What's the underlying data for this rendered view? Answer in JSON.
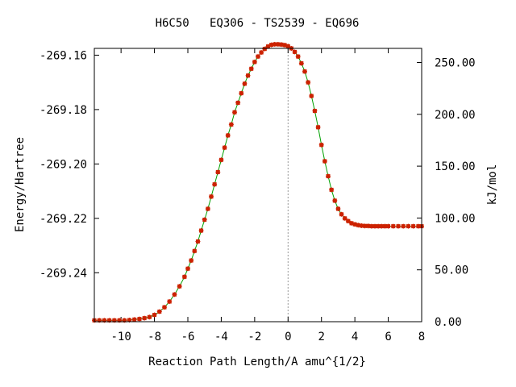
{
  "chart_data": {
    "type": "line",
    "title": "H6C50   EQ306 - TS2539 - EQ696",
    "xlabel": "Reaction Path Length/A amu^{1/2}",
    "ylabel": "Energy/Hartree",
    "y2label": "kJ/mol",
    "xlim": [
      -11.6,
      8
    ],
    "ylim": [
      -269.258,
      -269.1575
    ],
    "y2lim": [
      0,
      263.6
    ],
    "xticks": [
      "-10",
      "-8",
      "-6",
      "-4",
      "-2",
      "0",
      "2",
      "4",
      "6",
      "8"
    ],
    "yticks": [
      "-269.16",
      "-269.18",
      "-269.20",
      "-269.22",
      "-269.24"
    ],
    "y2ticks": [
      "0.00",
      "50.00",
      "100.00",
      "150.00",
      "200.00",
      "250.00"
    ],
    "ts_marker_x": 0,
    "line_color": "#00a000",
    "point_color": "#cc2200",
    "series": [
      {
        "x": [
          -11.6,
          -11.3,
          -11.0,
          -10.7,
          -10.4,
          -10.1,
          -9.8,
          -9.5,
          -9.2,
          -8.9,
          -8.6,
          -8.3,
          -8.0,
          -7.7,
          -7.4,
          -7.1,
          -6.8,
          -6.5,
          -6.2,
          -6.0,
          -5.8,
          -5.6,
          -5.4,
          -5.2,
          -5.0,
          -4.8,
          -4.6,
          -4.4,
          -4.2,
          -4.0,
          -3.8,
          -3.6,
          -3.4,
          -3.2,
          -3.0,
          -2.8,
          -2.6,
          -2.4,
          -2.2,
          -2.0,
          -1.8,
          -1.6,
          -1.4,
          -1.2,
          -1.0,
          -0.8,
          -0.6,
          -0.4,
          -0.2,
          0.0,
          0.2,
          0.4,
          0.6,
          0.8,
          1.0,
          1.2,
          1.4,
          1.6,
          1.8,
          2.0,
          2.2,
          2.4,
          2.6,
          2.8,
          3.0,
          3.2,
          3.4,
          3.6,
          3.8,
          4.0,
          4.2,
          4.4,
          4.6,
          4.8,
          5.0,
          5.2,
          5.4,
          5.6,
          5.8,
          6.0,
          6.3,
          6.6,
          6.9,
          7.2,
          7.5,
          7.8,
          8.0
        ],
        "y": [
          -269.2575,
          -269.2575,
          -269.2575,
          -269.2575,
          -269.2575,
          -269.2575,
          -269.2575,
          -269.2574,
          -269.2572,
          -269.257,
          -269.2567,
          -269.2563,
          -269.2555,
          -269.2543,
          -269.2527,
          -269.2506,
          -269.248,
          -269.245,
          -269.2415,
          -269.2385,
          -269.2355,
          -269.232,
          -269.2285,
          -269.2245,
          -269.2205,
          -269.2165,
          -269.212,
          -269.2075,
          -269.203,
          -269.1985,
          -269.194,
          -269.1895,
          -269.1855,
          -269.181,
          -269.1775,
          -269.174,
          -269.1705,
          -269.1675,
          -269.165,
          -269.1625,
          -269.1605,
          -269.159,
          -269.1577,
          -269.1568,
          -269.1562,
          -269.156,
          -269.156,
          -269.1561,
          -269.1563,
          -269.1567,
          -269.1575,
          -269.1588,
          -269.1605,
          -269.163,
          -269.166,
          -269.17,
          -269.175,
          -269.1805,
          -269.1865,
          -269.193,
          -269.199,
          -269.2045,
          -269.2095,
          -269.2135,
          -269.2165,
          -269.2185,
          -269.22,
          -269.221,
          -269.2218,
          -269.2222,
          -269.2225,
          -269.2227,
          -269.2228,
          -269.2228,
          -269.2229,
          -269.2229,
          -269.2229,
          -269.2229,
          -269.2229,
          -269.2229,
          -269.2229,
          -269.2229,
          -269.2229,
          -269.2229,
          -269.2229,
          -269.2229,
          -269.2229
        ]
      }
    ]
  }
}
